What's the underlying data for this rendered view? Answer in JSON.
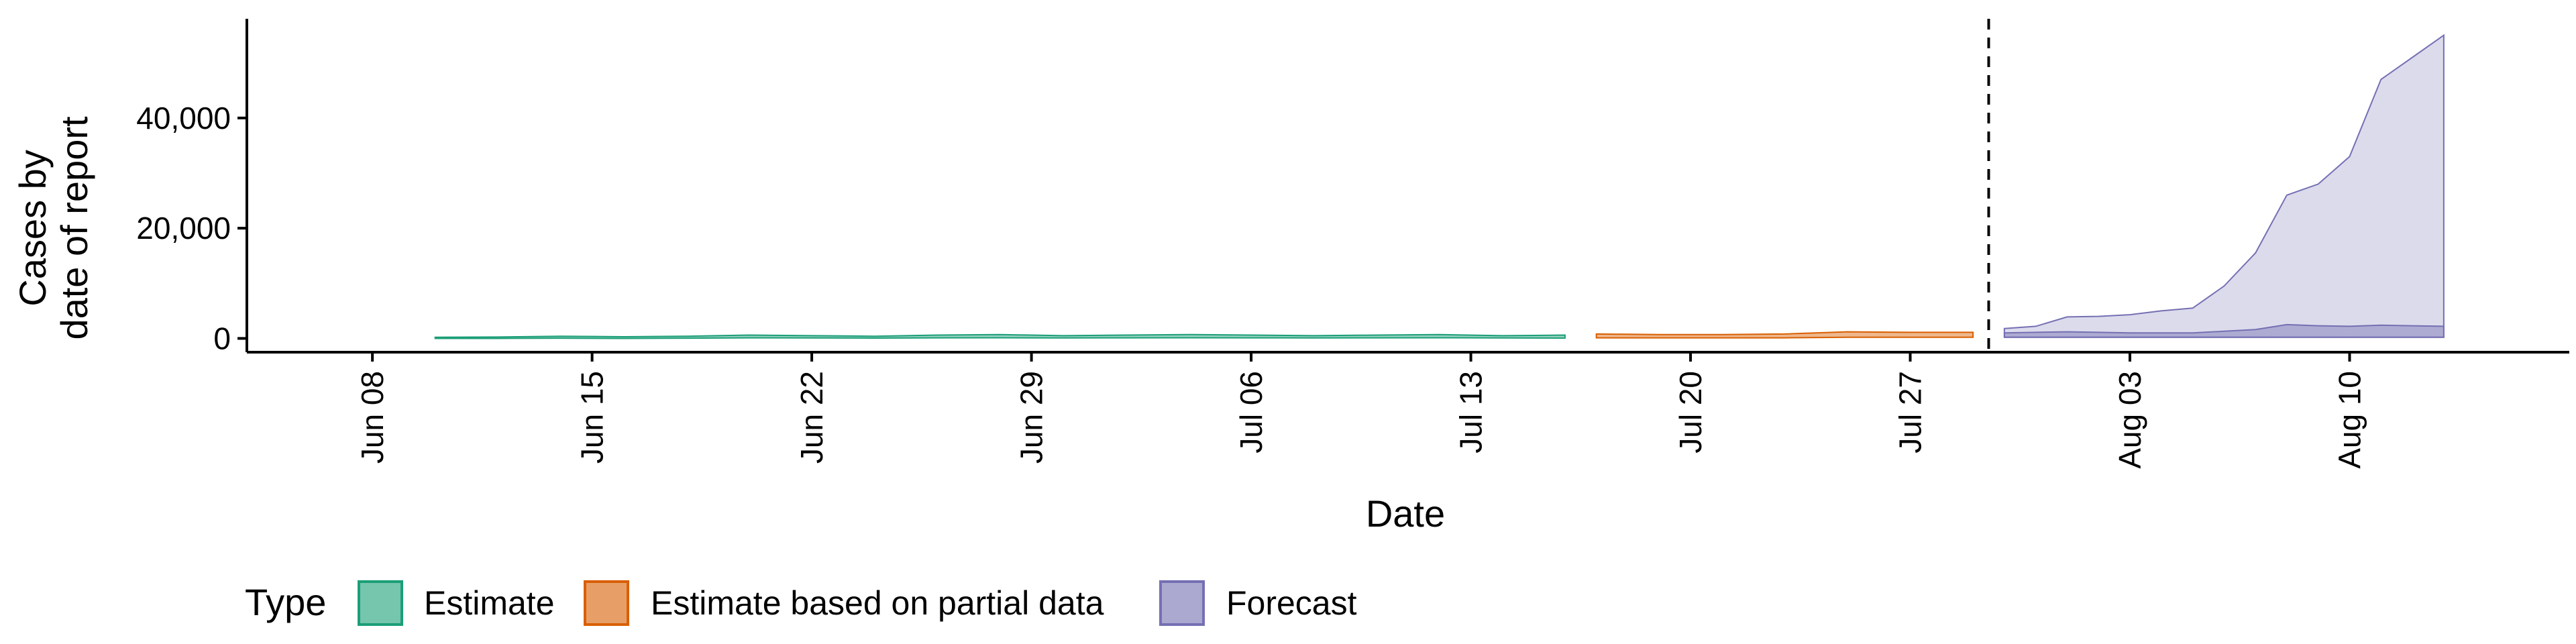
{
  "chart_data": {
    "type": "area",
    "title": "",
    "xlabel": "Date",
    "ylabel": [
      "Cases by",
      "date of report"
    ],
    "x_ticks": [
      "Jun 08",
      "Jun 15",
      "Jun 22",
      "Jun 29",
      "Jul 06",
      "Jul 13",
      "Jul 20",
      "Jul 27",
      "Aug 03",
      "Aug 10"
    ],
    "y_ticks": [
      "0",
      "20,000",
      "40,000"
    ],
    "ylim": [
      -2500,
      58000
    ],
    "xlim": [
      "2020-06-04",
      "2020-08-17"
    ],
    "forecast_start": "2020-07-30",
    "grid": false,
    "legend": {
      "title": "Type",
      "placement": "bottom",
      "entries": [
        "Estimate",
        "Estimate based on partial data",
        "Forecast"
      ]
    },
    "colors": {
      "estimate": "#1b9e77",
      "partial": "#d95f02",
      "forecast": "#7570b3"
    },
    "series": [
      {
        "name": "Estimate",
        "x": [
          "2020-06-10",
          "2020-06-12",
          "2020-06-14",
          "2020-06-16",
          "2020-06-18",
          "2020-06-20",
          "2020-06-22",
          "2020-06-24",
          "2020-06-26",
          "2020-06-28",
          "2020-06-30",
          "2020-07-02",
          "2020-07-04",
          "2020-07-06",
          "2020-07-08",
          "2020-07-10",
          "2020-07-12",
          "2020-07-14",
          "2020-07-16"
        ],
        "upper": [
          200,
          250,
          400,
          300,
          400,
          600,
          500,
          400,
          600,
          700,
          500,
          600,
          700,
          600,
          500,
          600,
          700,
          500,
          600
        ],
        "lower": [
          0,
          0,
          50,
          0,
          50,
          100,
          80,
          60,
          100,
          120,
          80,
          100,
          120,
          100,
          80,
          100,
          120,
          80,
          60
        ]
      },
      {
        "name": "Estimate based on partial data",
        "x": [
          "2020-07-17",
          "2020-07-19",
          "2020-07-21",
          "2020-07-23",
          "2020-07-25",
          "2020-07-27",
          "2020-07-29"
        ],
        "upper": [
          800,
          700,
          700,
          800,
          1200,
          1100,
          1100
        ],
        "lower": [
          100,
          100,
          100,
          100,
          200,
          200,
          200
        ]
      },
      {
        "name": "Forecast",
        "x": [
          "2020-07-30",
          "2020-07-31",
          "2020-08-01",
          "2020-08-02",
          "2020-08-03",
          "2020-08-04",
          "2020-08-05",
          "2020-08-06",
          "2020-08-07",
          "2020-08-08",
          "2020-08-09",
          "2020-08-10",
          "2020-08-11",
          "2020-08-12",
          "2020-08-13"
        ],
        "upper": [
          1800,
          2200,
          3900,
          4000,
          4300,
          5000,
          5500,
          9500,
          15500,
          26000,
          28000,
          33000,
          47000,
          51000,
          55000
        ],
        "lower": [
          200,
          200,
          200,
          200,
          200,
          200,
          200,
          200,
          200,
          200,
          200,
          200,
          200,
          200,
          200
        ],
        "inner_upper": [
          1000,
          1100,
          1200,
          1100,
          1000,
          1000,
          1000,
          1300,
          1600,
          2500,
          2300,
          2200,
          2400,
          2300,
          2200
        ]
      }
    ]
  }
}
